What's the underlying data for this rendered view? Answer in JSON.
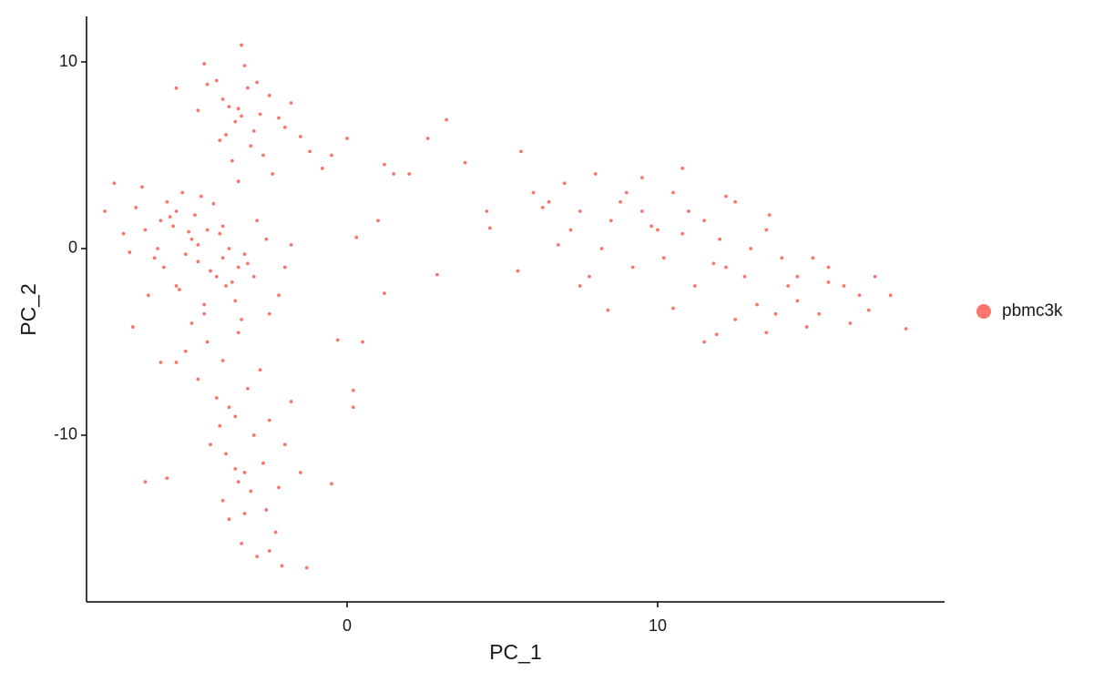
{
  "chart_data": {
    "type": "scatter",
    "x_label": "PC_1",
    "y_label": "PC_2",
    "xlim": [
      -8.39,
      19.24
    ],
    "ylim": [
      -18.93,
      12.44
    ],
    "xticks": [
      0,
      10
    ],
    "yticks": [
      -10,
      0,
      10
    ],
    "legend_position": "right",
    "series": [
      {
        "name": "pbmc3k",
        "color": "#F8766D",
        "x": [
          -4.0,
          -3.5,
          -3.2,
          -2.8,
          -3.6,
          -4.2,
          -3.0,
          -2.5,
          -3.8,
          -3.3,
          -4.5,
          -2.2,
          -3.1,
          -3.9,
          -2.7,
          -3.4,
          -4.8,
          -1.8,
          -2.0,
          -3.7,
          -5.5,
          -4.6,
          -1.5,
          -0.8,
          -1.2,
          -2.4,
          -3.5,
          -4.1,
          -2.9,
          -3.4,
          -6.0,
          -5.5,
          -5.0,
          -4.5,
          -4.0,
          -3.5,
          -6.5,
          -5.8,
          -5.2,
          -4.8,
          -4.2,
          -3.8,
          -3.2,
          -6.8,
          -7.2,
          -7.5,
          -6.2,
          -5.6,
          -4.9,
          -4.4,
          -3.9,
          -3.0,
          -2.6,
          -2.2,
          -5.3,
          -4.7,
          -6.1,
          -5.9,
          -4.1,
          -3.6,
          -7.0,
          -6.6,
          -5.4,
          -4.6,
          -3.3,
          -2.9,
          -2.0,
          -1.8,
          -5.7,
          -4.3,
          -6.4,
          -5.1,
          -3.7,
          -4.8,
          -5.5,
          -6.9,
          -7.8,
          -2.5,
          -3.4,
          -4.0,
          -5.0,
          -4.5,
          -4.0,
          -3.5,
          -4.8,
          -4.2,
          -3.8,
          -3.2,
          -2.8,
          -4.6,
          -5.2,
          -3.6,
          -4.1,
          -3.0,
          -2.5,
          -4.4,
          -3.9,
          -3.3,
          -2.7,
          -3.5,
          -4.0,
          -3.1,
          -2.6,
          -2.2,
          -3.8,
          -3.4,
          -2.9,
          -2.3,
          -3.6,
          -2.1,
          -5.5,
          -6.0,
          -6.5,
          -5.8,
          -2.0,
          -1.5,
          -1.3,
          -2.5,
          -3.3,
          -1.8,
          -0.5,
          0.0,
          1.2,
          1.5,
          2.6,
          3.2,
          3.8,
          4.5,
          1.0,
          0.3,
          -0.3,
          0.2,
          0.5,
          1.2,
          2.0,
          2.9,
          4.6,
          5.5,
          -0.5,
          0.2,
          6.0,
          6.5,
          7.0,
          7.5,
          8.0,
          8.5,
          9.0,
          9.5,
          10.0,
          10.5,
          11.0,
          11.5,
          12.0,
          12.5,
          13.0,
          13.5,
          14.0,
          14.5,
          15.0,
          15.5,
          16.0,
          16.5,
          17.0,
          17.5,
          18.0,
          7.2,
          8.2,
          9.2,
          10.2,
          11.2,
          12.2,
          13.2,
          14.2,
          15.2,
          16.2,
          8.8,
          9.8,
          10.8,
          11.8,
          12.8,
          13.8,
          14.8,
          6.8,
          7.8,
          10.5,
          11.5,
          12.5,
          13.5,
          14.5,
          15.5,
          9.5,
          10.8,
          12.2,
          13.6,
          7.5,
          5.6,
          6.3,
          8.4,
          11.9,
          16.8
        ],
        "y": [
          8.0,
          7.5,
          8.6,
          7.2,
          6.8,
          9.0,
          6.3,
          8.2,
          7.6,
          9.8,
          8.8,
          7.0,
          5.5,
          6.1,
          5.0,
          10.9,
          7.4,
          7.8,
          6.5,
          4.7,
          8.6,
          9.9,
          6.0,
          4.3,
          5.2,
          4.0,
          3.6,
          5.8,
          8.9,
          7.1,
          1.5,
          2.0,
          0.5,
          1.0,
          -0.5,
          -1.0,
          1.0,
          2.5,
          -0.3,
          0.2,
          -1.5,
          0.0,
          -0.8,
          2.2,
          0.8,
          3.5,
          -0.5,
          1.2,
          1.8,
          -1.2,
          -2.0,
          -1.5,
          0.5,
          -2.5,
          3.0,
          2.8,
          0.0,
          -1.0,
          0.8,
          -2.8,
          -0.2,
          3.3,
          -2.2,
          -3.0,
          -0.3,
          1.5,
          -1.0,
          0.2,
          1.7,
          2.4,
          -2.5,
          0.9,
          -1.8,
          -0.7,
          -2.0,
          -4.2,
          2.0,
          -3.5,
          -3.8,
          1.2,
          -4.0,
          -5.0,
          -6.0,
          -4.5,
          -7.0,
          -8.0,
          -8.5,
          -7.5,
          -6.5,
          -3.5,
          -5.5,
          -9.0,
          -9.5,
          -10.0,
          -9.2,
          -10.5,
          -11.0,
          -12.0,
          -11.5,
          -12.5,
          -13.5,
          -13.0,
          -14.0,
          -12.8,
          -14.5,
          -15.8,
          -16.5,
          -15.2,
          -11.8,
          -17.0,
          -6.1,
          -6.1,
          -12.5,
          -12.3,
          -10.5,
          -12.0,
          -17.1,
          -16.2,
          -14.2,
          -8.2,
          5.0,
          5.9,
          4.5,
          4.0,
          5.9,
          6.9,
          4.6,
          2.0,
          1.5,
          0.6,
          -4.9,
          -7.6,
          -5.0,
          -2.4,
          4.0,
          -1.4,
          1.1,
          -1.2,
          -12.6,
          -8.5,
          3.0,
          2.5,
          3.5,
          2.0,
          4.0,
          1.5,
          3.0,
          2.0,
          1.0,
          3.0,
          2.0,
          1.5,
          0.5,
          2.5,
          0.0,
          1.0,
          -0.5,
          -1.5,
          -0.5,
          -1.0,
          -2.0,
          -2.5,
          -1.5,
          -2.5,
          -4.3,
          1.0,
          0.0,
          -1.0,
          -0.5,
          -2.0,
          -1.0,
          -3.0,
          -2.0,
          -3.5,
          -4.0,
          2.5,
          1.2,
          0.8,
          -0.8,
          -1.5,
          -3.5,
          -4.2,
          0.2,
          -1.5,
          -3.2,
          -5.0,
          -3.8,
          -4.5,
          -2.8,
          -1.8,
          3.8,
          4.3,
          2.8,
          1.8,
          -2.0,
          5.2,
          2.2,
          -3.3,
          -4.6,
          -3.3
        ]
      }
    ]
  }
}
